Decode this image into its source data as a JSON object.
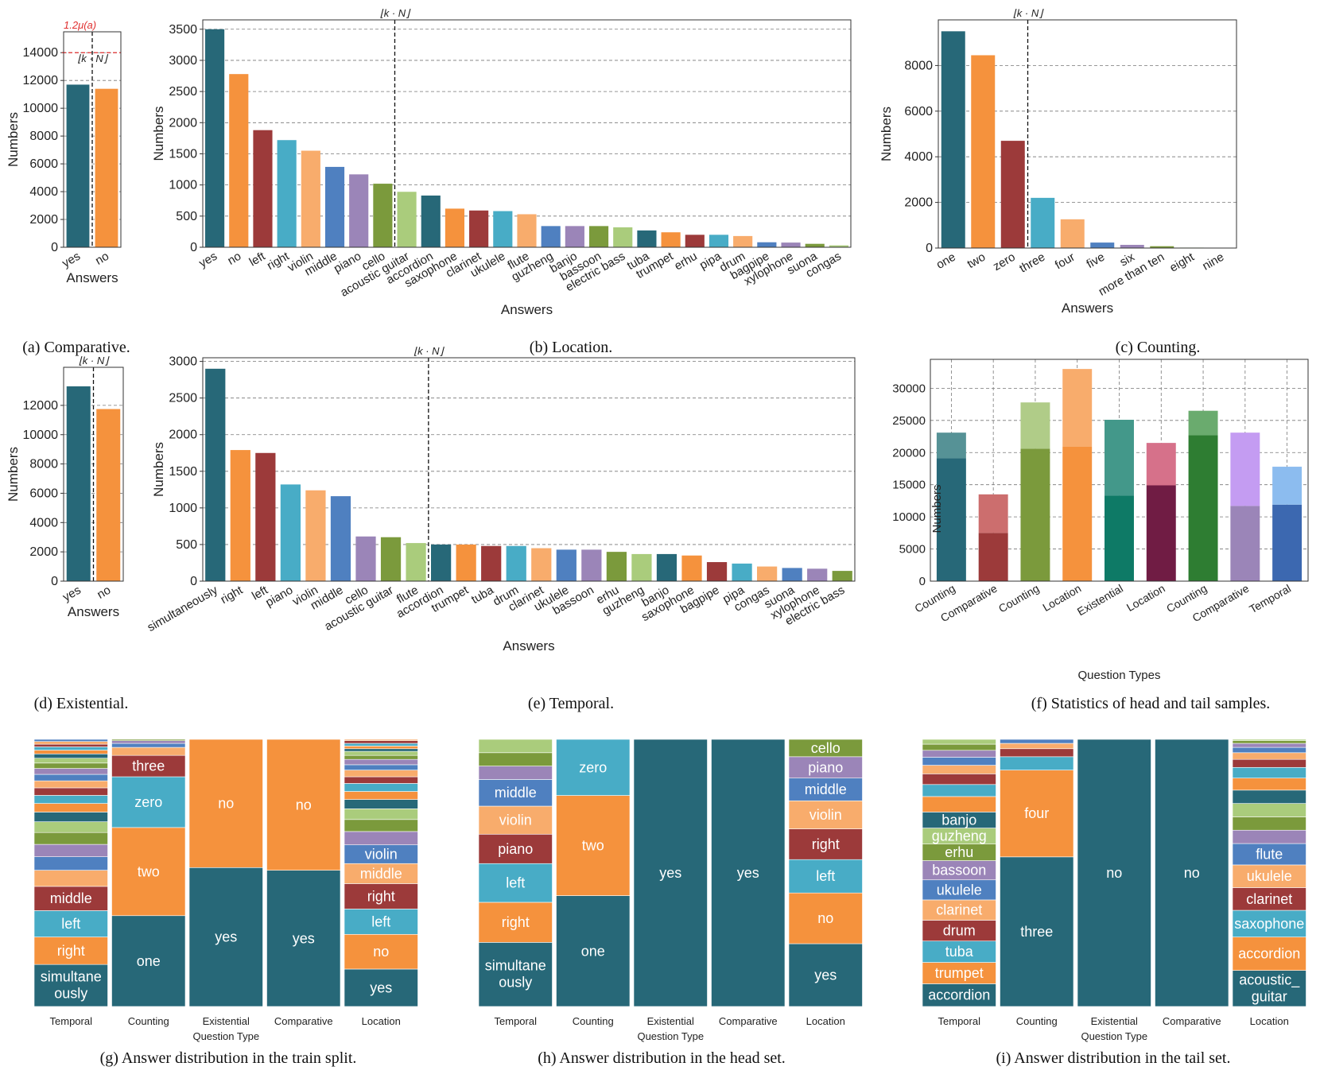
{
  "colors": {
    "palette": [
      "#276878",
      "#f5923d",
      "#9c3a3a",
      "#48acc6",
      "#f8ac6c",
      "#4f80c0",
      "#9b85b8",
      "#7b9a3c",
      "#aacc7c"
    ],
    "stack_palette": [
      "#276878",
      "#f5923d",
      "#48acc6",
      "#9c3a3a",
      "#f8ac6c",
      "#4f80c0",
      "#9b85b8",
      "#7b9a3c",
      "#aacc7c"
    ],
    "threshold": "#e03030",
    "head_fill": [
      "#276878",
      "#9c3a3a",
      "#7b9a3c",
      "#f5923d",
      "#0e7a66",
      "#701c44",
      "#2e7d32",
      "#9b85b8",
      "#3c68b0"
    ],
    "tail_fill": [
      "#569296",
      "#cc6e6e",
      "#b0cc88",
      "#f8ac6c",
      "#43988a",
      "#d6718a",
      "#6aab6e",
      "#c49cf2",
      "#8cbcef"
    ]
  },
  "chart_data": [
    {
      "id": "a",
      "type": "bar",
      "caption": "(a) Comparative.",
      "categories": [
        "yes",
        "no"
      ],
      "values": [
        11700,
        11400
      ],
      "xlabel": "Answers",
      "ylabel": "Numbers",
      "ylim": [
        0,
        15500
      ],
      "yticks": [
        0,
        2000,
        4000,
        6000,
        8000,
        10000,
        12000,
        14000
      ],
      "threshold": {
        "value": 14000,
        "label": "1.2μ(a)"
      },
      "split_index": 0.5,
      "split_label": "⌊k · N⌋",
      "rotate_ticks": true
    },
    {
      "id": "b",
      "type": "bar",
      "caption": "(b) Location.",
      "categories": [
        "yes",
        "no",
        "left",
        "right",
        "violin",
        "middle",
        "piano",
        "cello",
        "acoustic guitar",
        "accordion",
        "saxophone",
        "clarinet",
        "ukulele",
        "flute",
        "guzheng",
        "banjo",
        "bassoon",
        "electric bass",
        "tuba",
        "trumpet",
        "erhu",
        "pipa",
        "drum",
        "bagpipe",
        "xylophone",
        "suona",
        "congas"
      ],
      "values": [
        3500,
        2780,
        1880,
        1720,
        1550,
        1290,
        1170,
        1020,
        890,
        830,
        620,
        590,
        580,
        530,
        340,
        340,
        340,
        320,
        270,
        240,
        200,
        200,
        180,
        80,
        75,
        55,
        30
      ],
      "xlabel": "Answers",
      "ylabel": "Numbers",
      "ylim": [
        0,
        3650
      ],
      "yticks": [
        0,
        500,
        1000,
        1500,
        2000,
        2500,
        3000,
        3500
      ],
      "split_index": 7.5,
      "split_label": "⌊k · N⌋",
      "rotate_ticks": true
    },
    {
      "id": "c",
      "type": "bar",
      "caption": "(c) Counting.",
      "categories": [
        "one",
        "two",
        "zero",
        "three",
        "four",
        "five",
        "six",
        "more than ten",
        "eight",
        "nine"
      ],
      "values": [
        9500,
        8450,
        4700,
        2200,
        1260,
        240,
        140,
        80,
        20,
        10
      ],
      "xlabel": "Answers",
      "ylabel": "Numbers",
      "ylim": [
        0,
        10000
      ],
      "yticks": [
        0,
        2000,
        4000,
        6000,
        8000
      ],
      "split_index": 2.5,
      "split_label": "⌊k · N⌋",
      "rotate_ticks": true
    },
    {
      "id": "d",
      "type": "bar",
      "caption": "(d) Existential.",
      "categories": [
        "yes",
        "no"
      ],
      "values": [
        13300,
        11750
      ],
      "xlabel": "Answers",
      "ylabel": "Numbers",
      "ylim": [
        0,
        14600
      ],
      "yticks": [
        0,
        2000,
        4000,
        6000,
        8000,
        10000,
        12000
      ],
      "split_index": 0.5,
      "split_label": "⌊k · N⌋",
      "rotate_ticks": true
    },
    {
      "id": "e",
      "type": "bar",
      "caption": "(e) Temporal.",
      "categories": [
        "simultaneously",
        "right",
        "left",
        "piano",
        "violin",
        "middle",
        "cello",
        "acoustic guitar",
        "flute",
        "accordion",
        "trumpet",
        "tuba",
        "drum",
        "clarinet",
        "ukulele",
        "bassoon",
        "erhu",
        "guzheng",
        "banjo",
        "saxophone",
        "bagpipe",
        "pipa",
        "congas",
        "suona",
        "xylophone",
        "electric bass"
      ],
      "values": [
        2900,
        1790,
        1750,
        1320,
        1240,
        1160,
        610,
        600,
        520,
        500,
        500,
        480,
        480,
        450,
        430,
        430,
        400,
        370,
        370,
        350,
        260,
        240,
        200,
        180,
        170,
        140
      ],
      "xlabel": "Answers",
      "ylabel": "Numbers",
      "ylim": [
        0,
        3050
      ],
      "yticks": [
        0,
        500,
        1000,
        1500,
        2000,
        2500,
        3000
      ],
      "split_index": 8.5,
      "split_label": "⌊k · N⌋",
      "rotate_ticks": true
    },
    {
      "id": "f",
      "type": "stacked-bar",
      "caption": "(f) Statistics of head and tail samples.",
      "categories": [
        "Counting",
        "Comparative",
        "Counting",
        "Location",
        "Existential",
        "Location",
        "Counting",
        "Comparative",
        "Temporal"
      ],
      "series": [
        {
          "name": "head",
          "values": [
            19100,
            7500,
            20600,
            20900,
            13300,
            14900,
            22700,
            11700,
            11900
          ]
        },
        {
          "name": "tail",
          "values": [
            4000,
            6000,
            7200,
            12100,
            11800,
            6600,
            3800,
            11400,
            5900
          ]
        }
      ],
      "xlabel": "Question Types",
      "ylabel": "Numbers",
      "ylim": [
        0,
        34500
      ],
      "yticks": [
        0,
        5000,
        10000,
        15000,
        20000,
        25000,
        30000
      ]
    },
    {
      "id": "g",
      "type": "stacked-100",
      "caption": "(g) Answer distribution in the train split.",
      "xlabel": "Question Type",
      "columns": [
        {
          "name": "Temporal",
          "segments": [
            {
              "label": "simultane ously",
              "value": 7.8
            },
            {
              "label": "right",
              "value": 5.1
            },
            {
              "label": "left",
              "value": 4.9
            },
            {
              "label": "middle",
              "value": 4.5
            },
            {
              "label": "",
              "value": 3.0
            },
            {
              "label": "",
              "value": 2.5
            },
            {
              "label": "",
              "value": 2.3
            },
            {
              "label": "",
              "value": 2.2
            },
            {
              "label": "",
              "value": 2.0
            },
            {
              "label": "",
              "value": 1.8
            },
            {
              "label": "",
              "value": 1.6
            },
            {
              "label": "",
              "value": 1.5
            },
            {
              "label": "",
              "value": 1.4
            },
            {
              "label": "",
              "value": 1.3
            },
            {
              "label": "",
              "value": 1.2
            },
            {
              "label": "",
              "value": 1.1
            },
            {
              "label": "",
              "value": 1.0
            },
            {
              "label": "",
              "value": 0.9
            },
            {
              "label": "",
              "value": 0.8
            },
            {
              "label": "",
              "value": 0.7
            },
            {
              "label": "",
              "value": 0.6
            },
            {
              "label": "",
              "value": 0.5
            },
            {
              "label": "",
              "value": 0.5
            },
            {
              "label": "",
              "value": 0.4
            }
          ]
        },
        {
          "name": "Counting",
          "segments": [
            {
              "label": "one",
              "value": 34
            },
            {
              "label": "two",
              "value": 33
            },
            {
              "label": "zero",
              "value": 19
            },
            {
              "label": "three",
              "value": 8
            },
            {
              "label": "",
              "value": 3
            },
            {
              "label": "",
              "value": 1.5
            },
            {
              "label": "",
              "value": 1
            },
            {
              "label": "",
              "value": 0.5
            }
          ]
        },
        {
          "name": "Existential",
          "segments": [
            {
              "label": "yes",
              "value": 52
            },
            {
              "label": "no",
              "value": 48
            }
          ]
        },
        {
          "name": "Comparative",
          "segments": [
            {
              "label": "yes",
              "value": 51
            },
            {
              "label": "no",
              "value": 49
            }
          ]
        },
        {
          "name": "Location",
          "segments": [
            {
              "label": "yes",
              "value": 14
            },
            {
              "label": "no",
              "value": 13
            },
            {
              "label": "left",
              "value": 9.5
            },
            {
              "label": "right",
              "value": 9.5
            },
            {
              "label": "middle",
              "value": 7.5
            },
            {
              "label": "violin",
              "value": 7
            },
            {
              "label": "",
              "value": 5
            },
            {
              "label": "",
              "value": 4.5
            },
            {
              "label": "",
              "value": 4
            },
            {
              "label": "",
              "value": 3.5
            },
            {
              "label": "",
              "value": 3
            },
            {
              "label": "",
              "value": 3
            },
            {
              "label": "",
              "value": 2.5
            },
            {
              "label": "",
              "value": 2.5
            },
            {
              "label": "",
              "value": 2
            },
            {
              "label": "",
              "value": 2
            },
            {
              "label": "",
              "value": 1.5
            },
            {
              "label": "",
              "value": 1.5
            },
            {
              "label": "",
              "value": 1
            },
            {
              "label": "",
              "value": 1
            },
            {
              "label": "",
              "value": 1
            },
            {
              "label": "",
              "value": 1
            },
            {
              "label": "",
              "value": 0.5
            }
          ]
        }
      ]
    },
    {
      "id": "h",
      "type": "stacked-100",
      "caption": "(h) Answer distribution in the head set.",
      "xlabel": "Question Type",
      "columns": [
        {
          "name": "Temporal",
          "segments": [
            {
              "label": "simultane ously",
              "value": 24
            },
            {
              "label": "right",
              "value": 15
            },
            {
              "label": "left",
              "value": 14.5
            },
            {
              "label": "piano",
              "value": 11
            },
            {
              "label": "violin",
              "value": 10.5
            },
            {
              "label": "middle",
              "value": 10
            },
            {
              "label": "",
              "value": 5
            },
            {
              "label": "",
              "value": 5
            },
            {
              "label": "",
              "value": 5
            }
          ]
        },
        {
          "name": "Counting",
          "segments": [
            {
              "label": "one",
              "value": 41.5
            },
            {
              "label": "two",
              "value": 37.5
            },
            {
              "label": "zero",
              "value": 21
            }
          ]
        },
        {
          "name": "Existential",
          "segments": [
            {
              "label": "yes",
              "value": 100
            }
          ]
        },
        {
          "name": "Comparative",
          "segments": [
            {
              "label": "yes",
              "value": 100
            }
          ]
        },
        {
          "name": "Location",
          "segments": [
            {
              "label": "yes",
              "value": 23.5
            },
            {
              "label": "no",
              "value": 19
            },
            {
              "label": "left",
              "value": 12.5
            },
            {
              "label": "right",
              "value": 11.5
            },
            {
              "label": "violin",
              "value": 10.5
            },
            {
              "label": "middle",
              "value": 8.5
            },
            {
              "label": "piano",
              "value": 8
            },
            {
              "label": "cello",
              "value": 6.5
            }
          ]
        }
      ]
    },
    {
      "id": "i",
      "type": "stacked-100",
      "caption": "(i) Answer distribution in the tail set.",
      "xlabel": "Question Type",
      "columns": [
        {
          "name": "Temporal",
          "segments": [
            {
              "label": "accordion",
              "value": 8.5
            },
            {
              "label": "trumpet",
              "value": 8
            },
            {
              "label": "tuba",
              "value": 8
            },
            {
              "label": "drum",
              "value": 7.8
            },
            {
              "label": "clarinet",
              "value": 7.6
            },
            {
              "label": "ukulele",
              "value": 7.5
            },
            {
              "label": "bassoon",
              "value": 7.2
            },
            {
              "label": "erhu",
              "value": 6.2
            },
            {
              "label": "guzheng",
              "value": 6
            },
            {
              "label": "banjo",
              "value": 6
            },
            {
              "label": "",
              "value": 5.8
            },
            {
              "label": "",
              "value": 4.5
            },
            {
              "label": "",
              "value": 4
            },
            {
              "label": "",
              "value": 3.2
            },
            {
              "label": "",
              "value": 3
            },
            {
              "label": "",
              "value": 2.6
            },
            {
              "label": "",
              "value": 2.3
            },
            {
              "label": "",
              "value": 1.8
            }
          ]
        },
        {
          "name": "Counting",
          "segments": [
            {
              "label": "three",
              "value": 56
            },
            {
              "label": "four",
              "value": 32.5
            },
            {
              "label": "",
              "value": 5
            },
            {
              "label": "",
              "value": 3
            },
            {
              "label": "",
              "value": 2
            },
            {
              "label": "",
              "value": 1.5
            }
          ]
        },
        {
          "name": "Existential",
          "segments": [
            {
              "label": "no",
              "value": 100
            }
          ]
        },
        {
          "name": "Comparative",
          "segments": [
            {
              "label": "no",
              "value": 100
            }
          ]
        },
        {
          "name": "Location",
          "segments": [
            {
              "label": "acoustic_ guitar",
              "value": 13.5
            },
            {
              "label": "accordion",
              "value": 12.5
            },
            {
              "label": "saxophone",
              "value": 10
            },
            {
              "label": "clarinet",
              "value": 8.5
            },
            {
              "label": "ukulele",
              "value": 8.5
            },
            {
              "label": "flute",
              "value": 8
            },
            {
              "label": "",
              "value": 5
            },
            {
              "label": "",
              "value": 5
            },
            {
              "label": "",
              "value": 5
            },
            {
              "label": "",
              "value": 5
            },
            {
              "label": "",
              "value": 4.5
            },
            {
              "label": "",
              "value": 4
            },
            {
              "label": "",
              "value": 3
            },
            {
              "label": "",
              "value": 2.5
            },
            {
              "label": "",
              "value": 2
            },
            {
              "label": "",
              "value": 1.5
            },
            {
              "label": "",
              "value": 1
            },
            {
              "label": "",
              "value": 0.5
            }
          ]
        }
      ]
    }
  ]
}
